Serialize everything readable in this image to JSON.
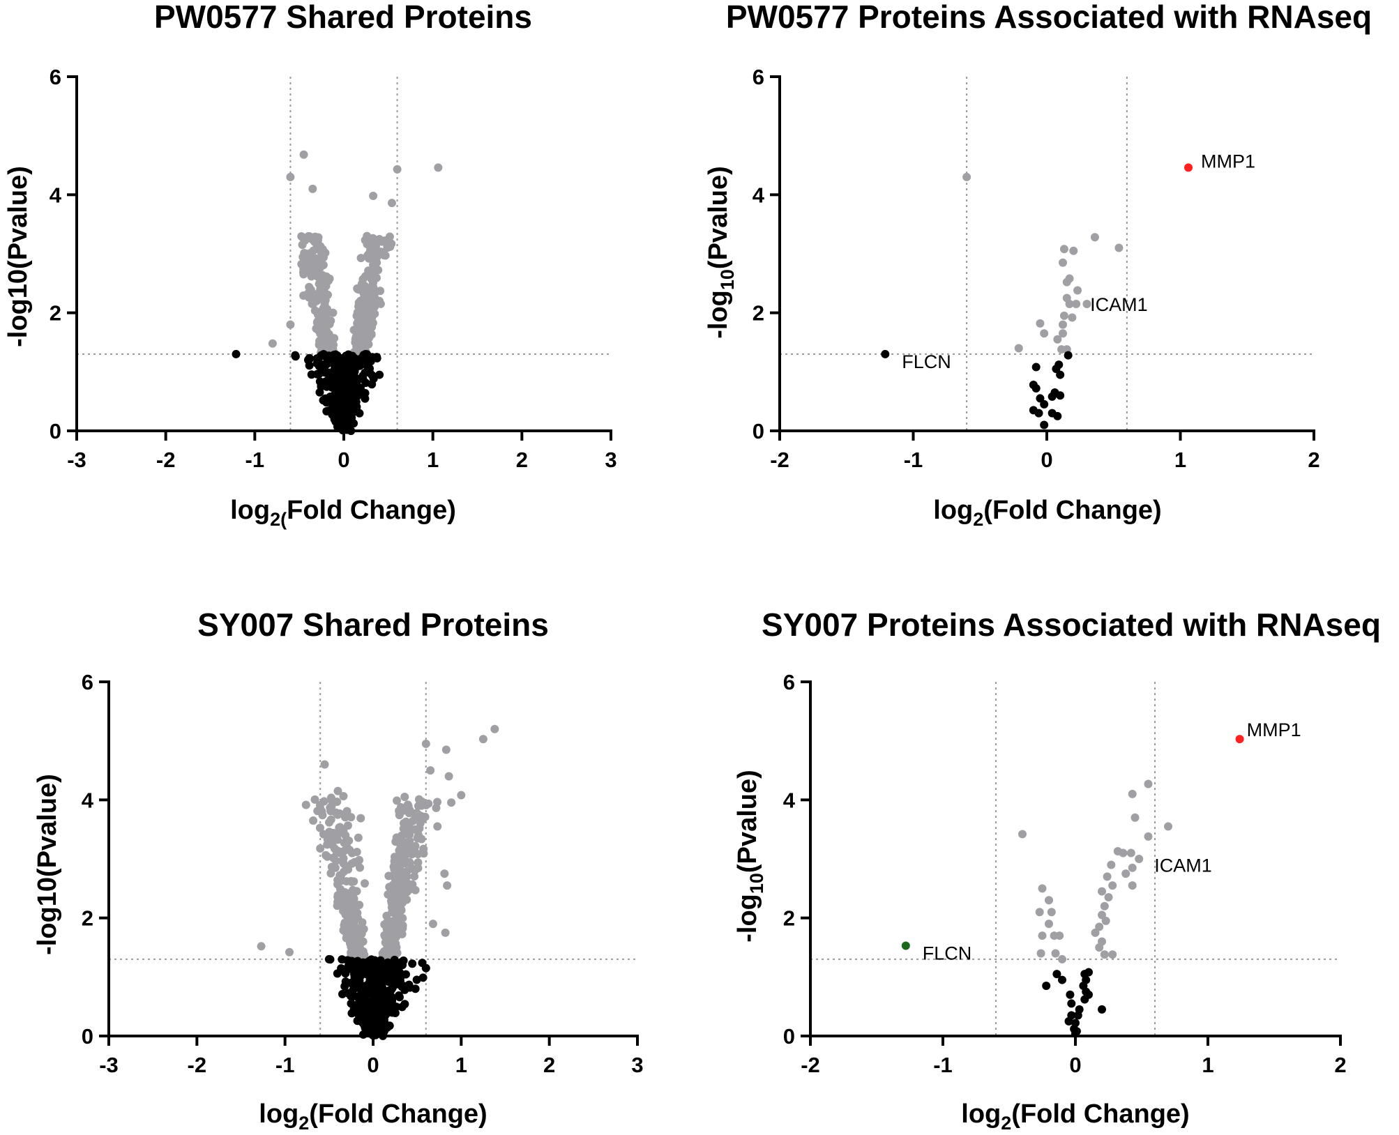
{
  "figure": {
    "colors": {
      "significant": "#a0a0a4",
      "nonsignificant": "#000000",
      "up_highlight": "#ff2020",
      "down_highlight": "#1a6a1a"
    },
    "thresholds": {
      "log2fc": [
        -0.6,
        0.6
      ],
      "neglog10p": 1.3
    }
  },
  "chart_data": [
    {
      "id": "pw0577_shared",
      "type": "scatter",
      "title": "PW0577 Shared Proteins",
      "xlabel": {
        "main": "log",
        "sub": "2(",
        "rest": "Fold Change)"
      },
      "ylabel": "-log10(Pvalue)",
      "xlim": [
        -3,
        3
      ],
      "ylim": [
        0,
        6
      ],
      "xticks": [
        "-3",
        "-2",
        "-1",
        "0",
        "1",
        "2",
        "3"
      ],
      "yticks": [
        "0",
        "2",
        "4",
        "6"
      ],
      "xtick_values": [
        -3,
        -2,
        -1,
        0,
        1,
        2,
        3
      ],
      "ytick_values": [
        0,
        2,
        4,
        6
      ],
      "cloud": {
        "seed": 11,
        "n_sig": 420,
        "n_non": 340,
        "spread_sig": 0.42,
        "spread_non": 0.3,
        "ymax_sig": 3.3
      },
      "points": [
        {
          "x": -0.45,
          "y": 4.68,
          "c": "significant"
        },
        {
          "x": -0.6,
          "y": 4.3,
          "c": "significant"
        },
        {
          "x": -0.35,
          "y": 4.1,
          "c": "significant"
        },
        {
          "x": 0.6,
          "y": 4.43,
          "c": "significant"
        },
        {
          "x": 1.06,
          "y": 4.46,
          "c": "significant"
        },
        {
          "x": 0.33,
          "y": 3.98,
          "c": "significant"
        },
        {
          "x": 0.54,
          "y": 3.86,
          "c": "significant"
        },
        {
          "x": 0.52,
          "y": 3.12,
          "c": "significant"
        },
        {
          "x": 0.26,
          "y": 3.3,
          "c": "significant"
        },
        {
          "x": -0.8,
          "y": 1.48,
          "c": "significant"
        },
        {
          "x": -0.6,
          "y": 1.8,
          "c": "significant"
        },
        {
          "x": 0.4,
          "y": 2.2,
          "c": "significant"
        },
        {
          "x": -1.21,
          "y": 1.3,
          "c": "nonsignificant"
        },
        {
          "x": 0.4,
          "y": 0.95,
          "c": "nonsignificant"
        },
        {
          "x": -0.4,
          "y": 1.2,
          "c": "nonsignificant"
        },
        {
          "x": 0.37,
          "y": 1.25,
          "c": "nonsignificant"
        }
      ],
      "labels": []
    },
    {
      "id": "pw0577_rnaseq",
      "type": "scatter",
      "title": "PW0577 Proteins Associated with RNAseq",
      "xlabel": {
        "main": "log",
        "sub": "2",
        "rest": "(Fold Change)"
      },
      "ylabel": {
        "main": "-log",
        "sub": "10",
        "rest": "(Pvalue)"
      },
      "xlim": [
        -2,
        2
      ],
      "ylim": [
        0,
        6
      ],
      "xticks": [
        "-2",
        "-1",
        "0",
        "1",
        "2"
      ],
      "yticks": [
        "0",
        "2",
        "4",
        "6"
      ],
      "xtick_values": [
        -2,
        -1,
        0,
        1,
        2
      ],
      "ytick_values": [
        0,
        2,
        4,
        6
      ],
      "points": [
        {
          "x": -0.6,
          "y": 4.3,
          "c": "significant"
        },
        {
          "x": 0.13,
          "y": 3.08,
          "c": "significant"
        },
        {
          "x": 0.2,
          "y": 3.05,
          "c": "significant"
        },
        {
          "x": 0.36,
          "y": 3.28,
          "c": "significant"
        },
        {
          "x": 0.54,
          "y": 3.1,
          "c": "significant"
        },
        {
          "x": 0.12,
          "y": 2.85,
          "c": "significant"
        },
        {
          "x": 0.17,
          "y": 2.58,
          "c": "significant"
        },
        {
          "x": 0.15,
          "y": 2.52,
          "c": "significant"
        },
        {
          "x": 0.23,
          "y": 2.38,
          "c": "significant"
        },
        {
          "x": 0.15,
          "y": 2.25,
          "c": "significant"
        },
        {
          "x": 0.17,
          "y": 2.15,
          "c": "significant"
        },
        {
          "x": 0.3,
          "y": 2.15,
          "c": "significant"
        },
        {
          "x": 0.22,
          "y": 2.15,
          "c": "significant"
        },
        {
          "x": 0.13,
          "y": 1.95,
          "c": "significant"
        },
        {
          "x": 0.19,
          "y": 1.92,
          "c": "significant"
        },
        {
          "x": 0.12,
          "y": 1.8,
          "c": "significant"
        },
        {
          "x": -0.05,
          "y": 1.82,
          "c": "significant"
        },
        {
          "x": -0.02,
          "y": 1.65,
          "c": "significant"
        },
        {
          "x": 0.12,
          "y": 1.65,
          "c": "significant"
        },
        {
          "x": 0.08,
          "y": 1.55,
          "c": "significant"
        },
        {
          "x": -0.21,
          "y": 1.4,
          "c": "significant"
        },
        {
          "x": 0.11,
          "y": 1.38,
          "c": "significant"
        },
        {
          "x": 0.15,
          "y": 1.38,
          "c": "significant"
        },
        {
          "x": -1.21,
          "y": 1.3,
          "c": "nonsignificant"
        },
        {
          "x": 0.16,
          "y": 1.28,
          "c": "nonsignificant"
        },
        {
          "x": 0.09,
          "y": 1.12,
          "c": "nonsignificant"
        },
        {
          "x": -0.08,
          "y": 1.08,
          "c": "nonsignificant"
        },
        {
          "x": 0.07,
          "y": 1.05,
          "c": "nonsignificant"
        },
        {
          "x": 0.1,
          "y": 0.95,
          "c": "nonsignificant"
        },
        {
          "x": -0.1,
          "y": 0.78,
          "c": "nonsignificant"
        },
        {
          "x": -0.08,
          "y": 0.72,
          "c": "nonsignificant"
        },
        {
          "x": 0.06,
          "y": 0.65,
          "c": "nonsignificant"
        },
        {
          "x": 0.1,
          "y": 0.6,
          "c": "nonsignificant"
        },
        {
          "x": 0.04,
          "y": 0.58,
          "c": "nonsignificant"
        },
        {
          "x": -0.05,
          "y": 0.55,
          "c": "nonsignificant"
        },
        {
          "x": -0.02,
          "y": 0.45,
          "c": "nonsignificant"
        },
        {
          "x": -0.1,
          "y": 0.35,
          "c": "nonsignificant"
        },
        {
          "x": -0.06,
          "y": 0.3,
          "c": "nonsignificant"
        },
        {
          "x": 0.04,
          "y": 0.3,
          "c": "nonsignificant"
        },
        {
          "x": 0.08,
          "y": 0.25,
          "c": "nonsignificant"
        },
        {
          "x": -0.02,
          "y": 0.1,
          "c": "nonsignificant"
        },
        {
          "x": 1.06,
          "y": 4.46,
          "c": "up_highlight"
        }
      ],
      "labels": [
        {
          "text": "MMP1",
          "x": 1.06,
          "y": 4.46,
          "dx": 8,
          "dy": -10
        },
        {
          "text": "ICAM1",
          "x": 0.22,
          "y": 2.15,
          "dx": 10,
          "dy": 0
        },
        {
          "text": "FLCN",
          "x": -1.21,
          "y": 1.3,
          "dx": 14,
          "dy": 10
        }
      ]
    },
    {
      "id": "sy007_shared",
      "type": "scatter",
      "title": "SY007 Shared Proteins",
      "xlabel": {
        "main": "log",
        "sub": "2",
        "rest": "(Fold Change)"
      },
      "ylabel": "-log10(Pvalue)",
      "xlim": [
        -3,
        3
      ],
      "ylim": [
        0,
        6
      ],
      "xticks": [
        "-3",
        "-2",
        "-1",
        "0",
        "1",
        "2",
        "3"
      ],
      "yticks": [
        "0",
        "2",
        "4",
        "6"
      ],
      "xtick_values": [
        -3,
        -2,
        -1,
        0,
        1,
        2,
        3
      ],
      "ytick_values": [
        0,
        2,
        4,
        6
      ],
      "cloud": {
        "seed": 29,
        "n_sig": 520,
        "n_non": 380,
        "spread_sig": 0.58,
        "spread_non": 0.38,
        "ymax_sig": 4.1
      },
      "points": [
        {
          "x": -0.55,
          "y": 4.6,
          "c": "significant"
        },
        {
          "x": -0.4,
          "y": 4.15,
          "c": "significant"
        },
        {
          "x": -0.6,
          "y": 3.85,
          "c": "significant"
        },
        {
          "x": -0.68,
          "y": 3.65,
          "c": "significant"
        },
        {
          "x": 0.6,
          "y": 4.95,
          "c": "significant"
        },
        {
          "x": 0.83,
          "y": 4.85,
          "c": "significant"
        },
        {
          "x": 1.25,
          "y": 5.03,
          "c": "significant"
        },
        {
          "x": 1.38,
          "y": 5.2,
          "c": "significant"
        },
        {
          "x": 0.65,
          "y": 4.5,
          "c": "significant"
        },
        {
          "x": 0.86,
          "y": 4.4,
          "c": "significant"
        },
        {
          "x": 1.0,
          "y": 4.08,
          "c": "significant"
        },
        {
          "x": 0.73,
          "y": 3.55,
          "c": "significant"
        },
        {
          "x": 0.81,
          "y": 2.75,
          "c": "significant"
        },
        {
          "x": 0.84,
          "y": 2.55,
          "c": "significant"
        },
        {
          "x": 0.82,
          "y": 1.75,
          "c": "significant"
        },
        {
          "x": 0.68,
          "y": 1.9,
          "c": "significant"
        },
        {
          "x": -1.27,
          "y": 1.52,
          "c": "significant"
        },
        {
          "x": -0.95,
          "y": 1.42,
          "c": "significant"
        },
        {
          "x": 0.6,
          "y": 1.15,
          "c": "nonsignificant"
        },
        {
          "x": 0.48,
          "y": 0.8,
          "c": "nonsignificant"
        },
        {
          "x": -0.5,
          "y": 1.3,
          "c": "nonsignificant"
        }
      ],
      "labels": []
    },
    {
      "id": "sy007_rnaseq",
      "type": "scatter",
      "title": "SY007 Proteins Associated with RNAseq",
      "xlabel": {
        "main": "log",
        "sub": "2",
        "rest": "(Fold Change)"
      },
      "ylabel": {
        "main": "-log",
        "sub": "10",
        "rest": "(Pvalue)"
      },
      "xlim": [
        -2,
        2
      ],
      "ylim": [
        0,
        6
      ],
      "xticks": [
        "-2",
        "-1",
        "0",
        "1",
        "2"
      ],
      "yticks": [
        "0",
        "2",
        "4",
        "6"
      ],
      "xtick_values": [
        -2,
        -1,
        0,
        1,
        2
      ],
      "ytick_values": [
        0,
        2,
        4,
        6
      ],
      "points": [
        {
          "x": -0.4,
          "y": 3.42,
          "c": "significant"
        },
        {
          "x": 0.55,
          "y": 4.27,
          "c": "significant"
        },
        {
          "x": 0.43,
          "y": 4.1,
          "c": "significant"
        },
        {
          "x": 0.45,
          "y": 3.7,
          "c": "significant"
        },
        {
          "x": 0.7,
          "y": 3.55,
          "c": "significant"
        },
        {
          "x": 0.55,
          "y": 3.38,
          "c": "significant"
        },
        {
          "x": 0.36,
          "y": 3.1,
          "c": "significant"
        },
        {
          "x": 0.32,
          "y": 3.13,
          "c": "significant"
        },
        {
          "x": 0.42,
          "y": 3.1,
          "c": "significant"
        },
        {
          "x": 0.48,
          "y": 3.0,
          "c": "significant"
        },
        {
          "x": 0.43,
          "y": 2.85,
          "c": "significant"
        },
        {
          "x": 0.27,
          "y": 2.9,
          "c": "significant"
        },
        {
          "x": 0.38,
          "y": 2.75,
          "c": "significant"
        },
        {
          "x": 0.24,
          "y": 2.7,
          "c": "significant"
        },
        {
          "x": 0.28,
          "y": 2.55,
          "c": "significant"
        },
        {
          "x": 0.43,
          "y": 2.55,
          "c": "significant"
        },
        {
          "x": 0.2,
          "y": 2.45,
          "c": "significant"
        },
        {
          "x": 0.25,
          "y": 2.35,
          "c": "significant"
        },
        {
          "x": 0.22,
          "y": 2.2,
          "c": "significant"
        },
        {
          "x": 0.2,
          "y": 2.05,
          "c": "significant"
        },
        {
          "x": 0.23,
          "y": 1.95,
          "c": "significant"
        },
        {
          "x": 0.18,
          "y": 1.85,
          "c": "significant"
        },
        {
          "x": 0.15,
          "y": 1.75,
          "c": "significant"
        },
        {
          "x": 0.2,
          "y": 1.6,
          "c": "significant"
        },
        {
          "x": 0.18,
          "y": 1.5,
          "c": "significant"
        },
        {
          "x": 0.22,
          "y": 1.38,
          "c": "significant"
        },
        {
          "x": 0.28,
          "y": 1.38,
          "c": "significant"
        },
        {
          "x": -0.25,
          "y": 2.5,
          "c": "significant"
        },
        {
          "x": -0.2,
          "y": 2.3,
          "c": "significant"
        },
        {
          "x": -0.18,
          "y": 2.1,
          "c": "significant"
        },
        {
          "x": -0.27,
          "y": 2.1,
          "c": "significant"
        },
        {
          "x": -0.2,
          "y": 1.9,
          "c": "significant"
        },
        {
          "x": -0.25,
          "y": 1.7,
          "c": "significant"
        },
        {
          "x": -0.16,
          "y": 1.7,
          "c": "significant"
        },
        {
          "x": -0.12,
          "y": 1.7,
          "c": "significant"
        },
        {
          "x": -0.26,
          "y": 1.4,
          "c": "significant"
        },
        {
          "x": -0.15,
          "y": 1.4,
          "c": "significant"
        },
        {
          "x": -0.1,
          "y": 1.3,
          "c": "significant"
        },
        {
          "x": 0.1,
          "y": 1.08,
          "c": "nonsignificant"
        },
        {
          "x": 0.07,
          "y": 1.05,
          "c": "nonsignificant"
        },
        {
          "x": 0.08,
          "y": 0.95,
          "c": "nonsignificant"
        },
        {
          "x": 0.06,
          "y": 0.85,
          "c": "nonsignificant"
        },
        {
          "x": 0.08,
          "y": 0.75,
          "c": "nonsignificant"
        },
        {
          "x": 0.1,
          "y": 0.7,
          "c": "nonsignificant"
        },
        {
          "x": 0.07,
          "y": 0.62,
          "c": "nonsignificant"
        },
        {
          "x": 0.2,
          "y": 0.45,
          "c": "nonsignificant"
        },
        {
          "x": -0.22,
          "y": 0.85,
          "c": "nonsignificant"
        },
        {
          "x": -0.14,
          "y": 1.05,
          "c": "nonsignificant"
        },
        {
          "x": -0.1,
          "y": 0.95,
          "c": "nonsignificant"
        },
        {
          "x": -0.04,
          "y": 0.7,
          "c": "nonsignificant"
        },
        {
          "x": -0.03,
          "y": 0.55,
          "c": "nonsignificant"
        },
        {
          "x": 0.03,
          "y": 0.45,
          "c": "nonsignificant"
        },
        {
          "x": 0.02,
          "y": 0.35,
          "c": "nonsignificant"
        },
        {
          "x": -0.03,
          "y": 0.35,
          "c": "nonsignificant"
        },
        {
          "x": -0.05,
          "y": 0.25,
          "c": "nonsignificant"
        },
        {
          "x": 0.0,
          "y": 0.22,
          "c": "nonsignificant"
        },
        {
          "x": -0.01,
          "y": 0.12,
          "c": "nonsignificant"
        },
        {
          "x": 0.01,
          "y": 0.08,
          "c": "nonsignificant"
        },
        {
          "x": 0.0,
          "y": 0.04,
          "c": "nonsignificant"
        },
        {
          "x": 1.24,
          "y": 5.03,
          "c": "up_highlight"
        },
        {
          "x": -1.28,
          "y": 1.53,
          "c": "down_highlight"
        }
      ],
      "labels": [
        {
          "text": "MMP1",
          "x": 1.24,
          "y": 5.03,
          "dx": 0,
          "dy": -14
        },
        {
          "text": "ICAM1",
          "x": 0.48,
          "y": 2.9,
          "dx": 12,
          "dy": 0
        },
        {
          "text": "FLCN",
          "x": -1.28,
          "y": 1.53,
          "dx": 14,
          "dy": 10
        }
      ]
    }
  ]
}
